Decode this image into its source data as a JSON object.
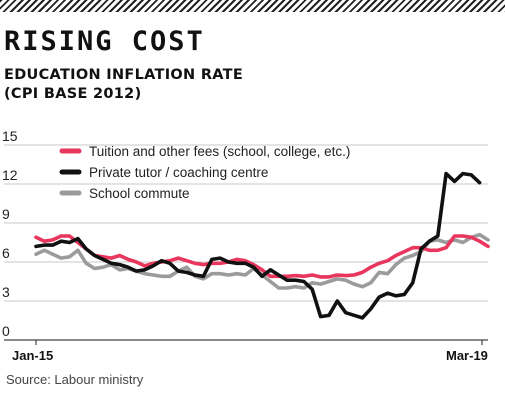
{
  "header": {
    "title": "RISING COST",
    "subtitle_line1": "EDUCATION INFLATION RATE",
    "subtitle_line2": "(CPI BASE 2012)"
  },
  "footer": {
    "source": "Source: Labour ministry"
  },
  "chart_data": {
    "type": "line",
    "title": "RISING COST",
    "subtitle": "EDUCATION INFLATION RATE (CPI BASE 2012)",
    "xlabel": "",
    "ylabel": "",
    "x_tick_labels": [
      "Jan-15",
      "Mar-19"
    ],
    "x_range": [
      "Jan-15",
      "Mar-19"
    ],
    "ylim": [
      0,
      15
    ],
    "yticks": [
      0,
      3,
      6,
      9,
      12,
      15
    ],
    "grid": "horizontal",
    "legend_position": "top-left",
    "series": [
      {
        "name": "Tuition and other fees (school, college, etc.)",
        "color": "#e8365d",
        "values": [
          7.9,
          7.6,
          7.7,
          8.0,
          8.0,
          7.5,
          7.0,
          6.5,
          6.4,
          6.3,
          6.5,
          6.2,
          6.0,
          5.7,
          5.9,
          6.0,
          6.1,
          6.3,
          6.1,
          5.9,
          5.8,
          5.9,
          5.9,
          6.0,
          6.2,
          6.1,
          5.8,
          5.4,
          4.9,
          4.9,
          4.9,
          4.95,
          4.9,
          5.0,
          4.85,
          4.85,
          5.0,
          4.95,
          5.0,
          5.2,
          5.6,
          5.9,
          6.1,
          6.5,
          6.8,
          7.1,
          7.1,
          6.9,
          6.9,
          7.1,
          8.0,
          8.0,
          7.9,
          7.6,
          7.2
        ]
      },
      {
        "name": "Private tutor / coaching centre",
        "color": "#111111",
        "values": [
          7.2,
          7.3,
          7.3,
          7.6,
          7.5,
          7.8,
          7.0,
          6.5,
          6.2,
          5.9,
          5.8,
          5.6,
          5.3,
          5.4,
          5.7,
          6.1,
          5.9,
          5.3,
          5.2,
          5.0,
          4.9,
          6.2,
          6.3,
          6.0,
          5.9,
          5.9,
          5.6,
          4.9,
          5.4,
          5.0,
          4.6,
          4.6,
          4.5,
          3.9,
          1.8,
          1.9,
          3.0,
          2.1,
          1.9,
          1.7,
          2.4,
          3.3,
          3.6,
          3.4,
          3.5,
          4.4,
          7.0,
          7.6,
          8.0,
          12.8,
          12.2,
          12.8,
          12.7,
          12.1
        ]
      },
      {
        "name": "School commute",
        "color": "#9b9b9b",
        "values": [
          6.6,
          6.9,
          6.6,
          6.3,
          6.4,
          6.9,
          5.9,
          5.5,
          5.6,
          5.8,
          5.4,
          5.5,
          5.3,
          5.1,
          5.0,
          4.9,
          4.9,
          5.3,
          5.6,
          4.9,
          4.7,
          5.1,
          5.1,
          5.0,
          5.1,
          5.0,
          5.5,
          5.0,
          4.5,
          4.0,
          4.0,
          4.1,
          4.0,
          4.4,
          4.3,
          4.5,
          4.7,
          4.6,
          4.3,
          4.1,
          4.4,
          5.2,
          5.1,
          5.8,
          6.3,
          6.5,
          6.8,
          7.6,
          7.7,
          7.5,
          7.7,
          7.5,
          7.9,
          8.1,
          7.7
        ]
      }
    ]
  }
}
